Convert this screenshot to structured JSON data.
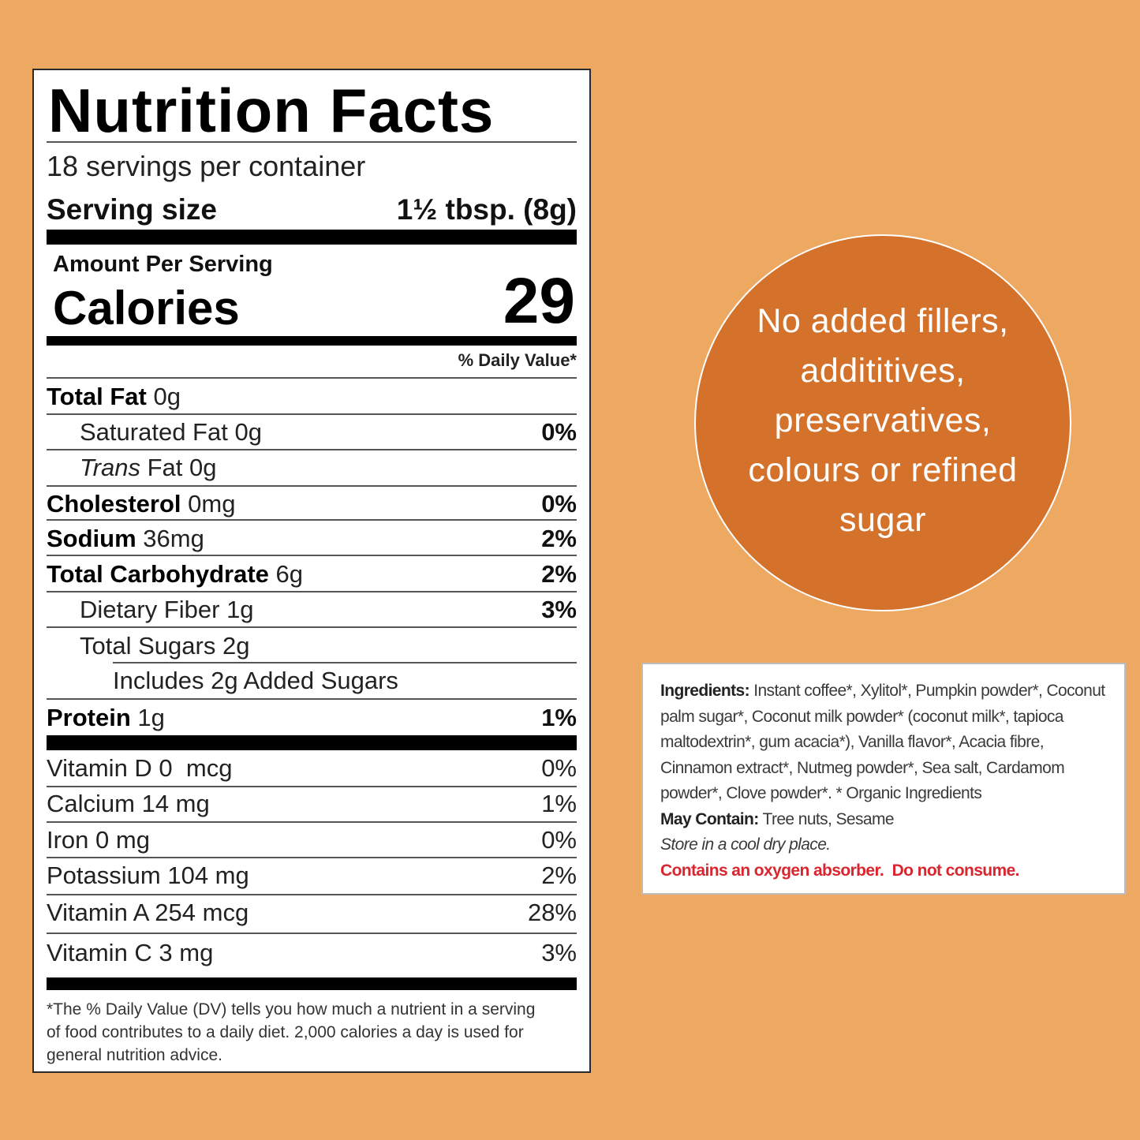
{
  "nutrition": {
    "title": "Nutrition Facts",
    "servings_per_container": "18 servings per container",
    "serving_size_label": "Serving size",
    "serving_size_value": "1½ tbsp. (8g)",
    "amount_per_serving": "Amount Per Serving",
    "calories_label": "Calories",
    "calories_value": "29",
    "daily_value_header": "% Daily Value*",
    "rows": [
      {
        "name": "Total Fat",
        "amount": "0g",
        "dv": ""
      },
      {
        "name": "Saturated Fat",
        "amount": "0g",
        "dv": "0%"
      },
      {
        "name_italic": "Trans",
        "name": "Fat",
        "amount": "0g",
        "dv": ""
      },
      {
        "name": "Cholesterol",
        "amount": "0mg",
        "dv": "0%"
      },
      {
        "name": "Sodium",
        "amount": "36mg",
        "dv": "2%"
      },
      {
        "name": "Total Carbohydrate",
        "amount": "6g",
        "dv": "2%"
      },
      {
        "name": "Dietary Fiber",
        "amount": "1g",
        "dv": "3%"
      },
      {
        "name": "Total Sugars",
        "amount": "2g",
        "dv": ""
      },
      {
        "name": "Includes 2g Added Sugars",
        "amount": "",
        "dv": ""
      },
      {
        "name": "Protein",
        "amount": "1g",
        "dv": "1%"
      }
    ],
    "vitamins": [
      {
        "text": "Vitamin D 0  mcg",
        "dv": "0%"
      },
      {
        "text": "Calcium 14 mg",
        "dv": "1%"
      },
      {
        "text": "Iron 0 mg",
        "dv": "0%"
      },
      {
        "text": "Potassium 104 mg",
        "dv": "2%"
      },
      {
        "text": "Vitamin A 254 mcg",
        "dv": "28%"
      },
      {
        "text": "Vitamin C 3 mg",
        "dv": "3%"
      }
    ],
    "footnote": "*The % Daily Value (DV) tells you how much a nutrient in a serving of food contributes to a daily diet. 2,000 calories a day is used for general nutrition advice."
  },
  "circle": {
    "lines": [
      "No added fillers,",
      "addititives,",
      "preservatives,",
      "colours or refined",
      "sugar"
    ]
  },
  "ingredients": {
    "label": "Ingredients:",
    "text": "Instant coffee*, Xylitol*, Pumpkin powder*, Coconut palm sugar*, Coconut milk powder* (coconut milk*, tapioca maltodextrin*, gum acacia*), Vanilla flavor*, Acacia fibre, Cinnamon extract*, Nutmeg powder*, Sea salt, Cardamom powder*, Clove powder*. * Organic Ingredients",
    "may_contain_label": "May Contain:",
    "may_contain_text": "Tree nuts, Sesame",
    "storage": "Store in a cool dry place.",
    "warning": "Contains an oxygen absorber.  Do not consume."
  },
  "colors": {
    "background": "#EDA862",
    "circle": "#D4722C",
    "warning": "#D9262E"
  }
}
